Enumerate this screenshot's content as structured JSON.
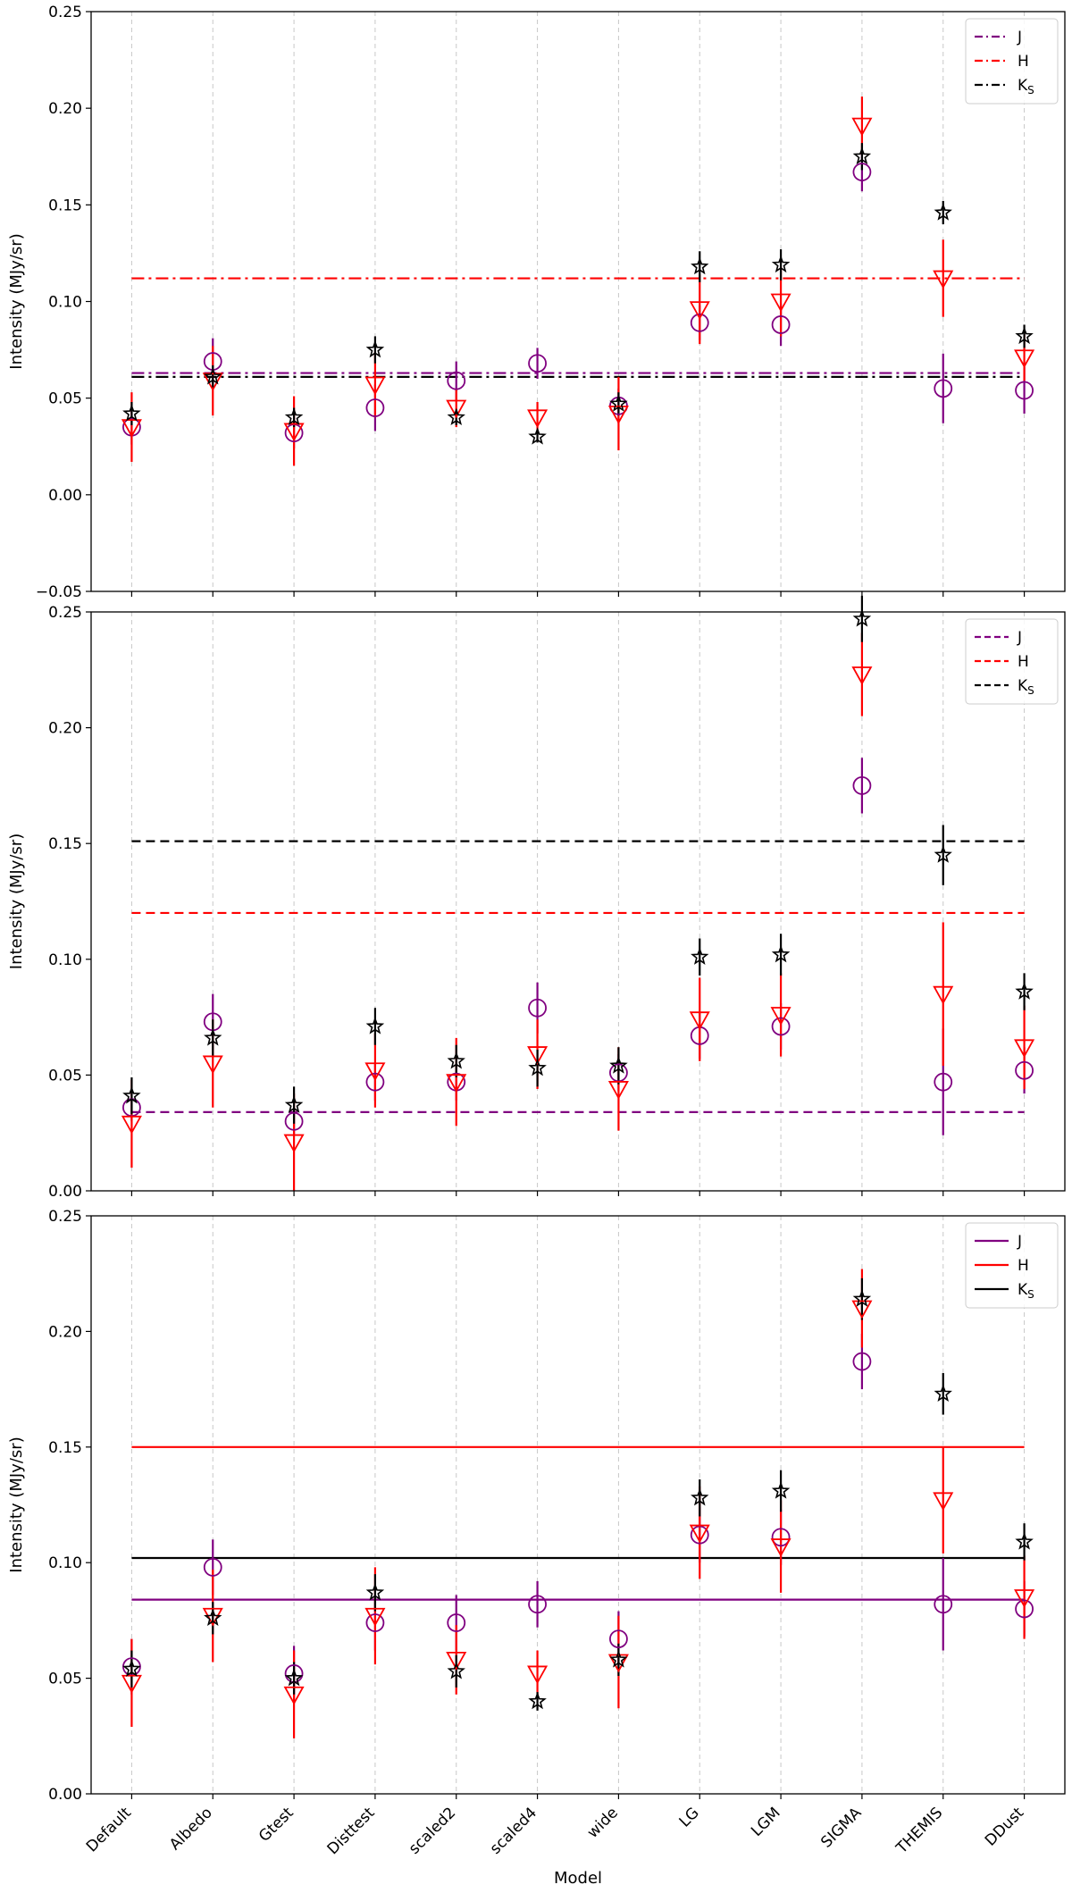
{
  "chart_data": [
    {
      "type": "scatter",
      "title": "",
      "xlabel": "",
      "ylabel": "Intensity (MJy/sr)",
      "ylim": [
        -0.05,
        0.25
      ],
      "yticks": [
        -0.05,
        0.0,
        0.05,
        0.1,
        0.15,
        0.2,
        0.25
      ],
      "ytick_labels": [
        "−0.05",
        "0.00",
        "0.05",
        "0.10",
        "0.15",
        "0.20",
        "0.25"
      ],
      "grid": "vertical dashed",
      "legend_position": "top-right",
      "line_style": "dashdot",
      "categories": [
        "Default",
        "Albedo",
        "Gtest",
        "Disttest",
        "scaled2",
        "scaled4",
        "wide",
        "LG",
        "LGM",
        "SIGMA",
        "THEMIS",
        "DDust"
      ],
      "reference_lines": [
        {
          "name": "J",
          "value": 0.063,
          "color": "#800080"
        },
        {
          "name": "H",
          "value": 0.112,
          "color": "#ff0000"
        },
        {
          "name": "K_S",
          "value": 0.061,
          "color": "#000000"
        }
      ],
      "series": [
        {
          "name": "J",
          "marker": "circle",
          "color": "#800080",
          "values": [
            0.035,
            0.069,
            0.032,
            0.045,
            0.059,
            0.068,
            0.046,
            0.089,
            0.088,
            0.167,
            0.055,
            0.054
          ],
          "errors": [
            0.009,
            0.012,
            0.008,
            0.012,
            0.01,
            0.008,
            0.009,
            0.009,
            0.011,
            0.01,
            0.018,
            0.012
          ]
        },
        {
          "name": "H",
          "marker": "triangle-down",
          "color": "#ff0000",
          "values": [
            0.035,
            0.059,
            0.033,
            0.057,
            0.045,
            0.04,
            0.042,
            0.096,
            0.1,
            0.191,
            0.112,
            0.071
          ],
          "errors": [
            0.018,
            0.018,
            0.018,
            0.017,
            0.01,
            0.008,
            0.019,
            0.018,
            0.018,
            0.015,
            0.02,
            0.012
          ]
        },
        {
          "name": "K_S",
          "marker": "star",
          "color": "#000000",
          "values": [
            0.042,
            0.061,
            0.04,
            0.075,
            0.04,
            0.03,
            0.047,
            0.118,
            0.119,
            0.175,
            0.146,
            0.082
          ],
          "errors": [
            0.006,
            0.006,
            0.005,
            0.007,
            0.004,
            0.003,
            0.006,
            0.008,
            0.008,
            0.007,
            0.006,
            0.006
          ]
        }
      ]
    },
    {
      "type": "scatter",
      "title": "",
      "xlabel": "",
      "ylabel": "Intensity (MJy/sr)",
      "ylim": [
        0.0,
        0.25
      ],
      "yticks": [
        0.0,
        0.05,
        0.1,
        0.15,
        0.2,
        0.25
      ],
      "ytick_labels": [
        "0.00",
        "0.05",
        "0.10",
        "0.15",
        "0.20",
        "0.25"
      ],
      "grid": "vertical dashed",
      "legend_position": "top-right",
      "line_style": "dashed",
      "categories": [
        "Default",
        "Albedo",
        "Gtest",
        "Disttest",
        "scaled2",
        "scaled4",
        "wide",
        "LG",
        "LGM",
        "SIGMA",
        "THEMIS",
        "DDust"
      ],
      "reference_lines": [
        {
          "name": "J",
          "value": 0.034,
          "color": "#800080"
        },
        {
          "name": "H",
          "value": 0.12,
          "color": "#ff0000"
        },
        {
          "name": "K_S",
          "value": 0.151,
          "color": "#000000"
        }
      ],
      "series": [
        {
          "name": "J",
          "marker": "circle",
          "color": "#800080",
          "values": [
            0.036,
            0.073,
            0.03,
            0.047,
            0.047,
            0.079,
            0.051,
            0.067,
            0.071,
            0.175,
            0.047,
            0.052
          ],
          "errors": [
            0.006,
            0.012,
            0.006,
            0.008,
            0.008,
            0.011,
            0.008,
            0.01,
            0.01,
            0.012,
            0.023,
            0.01
          ]
        },
        {
          "name": "H",
          "marker": "triangle-down",
          "color": "#ff0000",
          "values": [
            0.029,
            0.055,
            0.021,
            0.052,
            0.047,
            0.059,
            0.044,
            0.074,
            0.076,
            0.223,
            0.085,
            0.062
          ],
          "errors": [
            0.019,
            0.019,
            0.021,
            0.016,
            0.019,
            0.015,
            0.018,
            0.018,
            0.018,
            0.018,
            0.031,
            0.018
          ]
        },
        {
          "name": "K_S",
          "marker": "star",
          "color": "#000000",
          "values": [
            0.041,
            0.066,
            0.037,
            0.071,
            0.056,
            0.053,
            0.054,
            0.101,
            0.102,
            0.247,
            0.145,
            0.086
          ],
          "errors": [
            0.008,
            0.008,
            0.008,
            0.008,
            0.007,
            0.008,
            0.008,
            0.008,
            0.009,
            0.01,
            0.013,
            0.008
          ]
        }
      ]
    },
    {
      "type": "scatter",
      "title": "",
      "xlabel": "Model",
      "ylabel": "Intensity (MJy/sr)",
      "ylim": [
        0.0,
        0.25
      ],
      "yticks": [
        0.0,
        0.05,
        0.1,
        0.15,
        0.2,
        0.25
      ],
      "ytick_labels": [
        "0.00",
        "0.05",
        "0.10",
        "0.15",
        "0.20",
        "0.25"
      ],
      "grid": "vertical dashed",
      "legend_position": "top-right",
      "line_style": "solid",
      "categories": [
        "Default",
        "Albedo",
        "Gtest",
        "Disttest",
        "scaled2",
        "scaled4",
        "wide",
        "LG",
        "LGM",
        "SIGMA",
        "THEMIS",
        "DDust"
      ],
      "reference_lines": [
        {
          "name": "J",
          "value": 0.084,
          "color": "#800080"
        },
        {
          "name": "H",
          "value": 0.15,
          "color": "#ff0000"
        },
        {
          "name": "K_S",
          "value": 0.102,
          "color": "#000000"
        }
      ],
      "series": [
        {
          "name": "J",
          "marker": "circle",
          "color": "#800080",
          "values": [
            0.055,
            0.098,
            0.052,
            0.074,
            0.074,
            0.082,
            0.067,
            0.112,
            0.111,
            0.187,
            0.082,
            0.08
          ],
          "errors": [
            0.012,
            0.012,
            0.012,
            0.012,
            0.012,
            0.01,
            0.012,
            0.012,
            0.012,
            0.012,
            0.02,
            0.012
          ]
        },
        {
          "name": "H",
          "marker": "triangle-down",
          "color": "#ff0000",
          "values": [
            0.048,
            0.077,
            0.043,
            0.077,
            0.058,
            0.052,
            0.057,
            0.113,
            0.107,
            0.21,
            0.127,
            0.085
          ],
          "errors": [
            0.019,
            0.02,
            0.019,
            0.021,
            0.015,
            0.01,
            0.02,
            0.02,
            0.02,
            0.017,
            0.023,
            0.018
          ]
        },
        {
          "name": "K_S",
          "marker": "star",
          "color": "#000000",
          "values": [
            0.054,
            0.076,
            0.05,
            0.087,
            0.053,
            0.04,
            0.058,
            0.128,
            0.131,
            0.214,
            0.173,
            0.109
          ],
          "errors": [
            0.008,
            0.007,
            0.007,
            0.008,
            0.007,
            0.004,
            0.007,
            0.008,
            0.009,
            0.009,
            0.009,
            0.008
          ]
        }
      ]
    }
  ]
}
